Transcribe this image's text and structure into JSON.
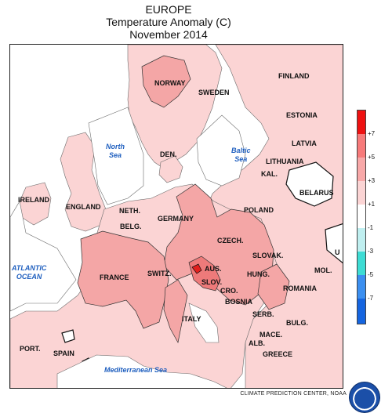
{
  "header": {
    "line1": "EUROPE",
    "line2": "Temperature Anomaly (C)",
    "line3": "November 2014"
  },
  "countries": [
    {
      "key": "norway",
      "label": "NORWAY"
    },
    {
      "key": "sweden",
      "label": "SWEDEN"
    },
    {
      "key": "finland",
      "label": "FINLAND"
    },
    {
      "key": "estonia",
      "label": "ESTONIA"
    },
    {
      "key": "latvia",
      "label": "LATVIA"
    },
    {
      "key": "lithuania",
      "label": "LITHUANIA"
    },
    {
      "key": "kal",
      "label": "KAL."
    },
    {
      "key": "belarus",
      "label": "BELARUS"
    },
    {
      "key": "den",
      "label": "DEN."
    },
    {
      "key": "ireland",
      "label": "IRELAND"
    },
    {
      "key": "england",
      "label": "ENGLAND"
    },
    {
      "key": "neth",
      "label": "NETH."
    },
    {
      "key": "belg",
      "label": "BELG."
    },
    {
      "key": "germany",
      "label": "GERMANY"
    },
    {
      "key": "poland",
      "label": "POLAND"
    },
    {
      "key": "czech",
      "label": "CZECH."
    },
    {
      "key": "slovak",
      "label": "SLOVAK."
    },
    {
      "key": "aus",
      "label": "AUS."
    },
    {
      "key": "hung",
      "label": "HUNG."
    },
    {
      "key": "slov",
      "label": "SLOV."
    },
    {
      "key": "cro",
      "label": "CRO."
    },
    {
      "key": "bosnia",
      "label": "BOSNIA"
    },
    {
      "key": "switz",
      "label": "SWITZ."
    },
    {
      "key": "france",
      "label": "FRANCE"
    },
    {
      "key": "italy",
      "label": "ITALY"
    },
    {
      "key": "romania",
      "label": "ROMANIA"
    },
    {
      "key": "mol",
      "label": "MOL."
    },
    {
      "key": "u",
      "label": "U"
    },
    {
      "key": "serb",
      "label": "SERB."
    },
    {
      "key": "bulg",
      "label": "BULG."
    },
    {
      "key": "mace",
      "label": "MACE."
    },
    {
      "key": "alb",
      "label": "ALB."
    },
    {
      "key": "greece",
      "label": "GREECE"
    },
    {
      "key": "port",
      "label": "PORT."
    },
    {
      "key": "spain",
      "label": "SPAIN"
    }
  ],
  "seas": {
    "north_sea": [
      "North",
      "Sea"
    ],
    "baltic_sea": [
      "Baltic",
      "Sea"
    ],
    "atlantic": [
      "ATLANTIC",
      "OCEAN"
    ],
    "mediterranean": "Mediterranean Sea"
  },
  "legend": {
    "ticks": [
      "+7",
      "+5",
      "+3",
      "+1",
      "-1",
      "-3",
      "-5",
      "-7"
    ],
    "colors": [
      "#ee1111",
      "#f77a7a",
      "#f8a8a8",
      "#fbd4d4",
      "#ffffff",
      "#bfeff0",
      "#3ddcd4",
      "#3b8ff0",
      "#1565e0"
    ]
  },
  "anomaly_colors": {
    "plus_1_to_3": "#fbd4d4",
    "plus_3_to_5": "#f4a6a6",
    "plus_5_to_7": "#ee7a7a",
    "above_7": "#e2201e"
  },
  "footer": {
    "credit": "CLIMATE PREDICTION CENTER, NOAA"
  }
}
